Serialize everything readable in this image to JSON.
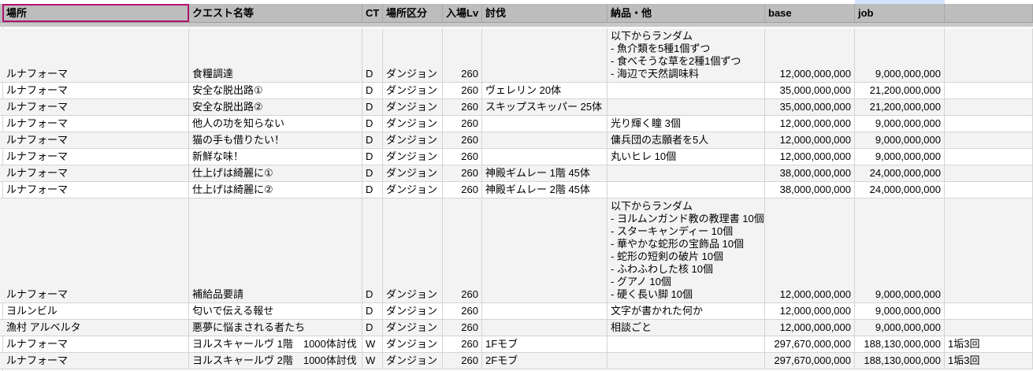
{
  "header": {
    "columns": [
      "場所",
      "クエスト名等",
      "CT",
      "場所区分",
      "入場Lv",
      "討伐",
      "納品・他",
      "base",
      "job",
      ""
    ]
  },
  "rows": [
    {
      "location": "ルナフォーマ",
      "quest": "食糧調達",
      "ct": "D",
      "area_type": "ダンジョン",
      "lv": "260",
      "hunt": "",
      "delivery": "以下からランダム\n- 魚介類を5種1個ずつ\n- 食べそうな草を2種1個ずつ\n- 海辺で天然調味料",
      "base": "12,000,000,000",
      "job": "9,000,000,000",
      "note": ""
    },
    {
      "location": "ルナフォーマ",
      "quest": "安全な脱出路①",
      "ct": "D",
      "area_type": "ダンジョン",
      "lv": "260",
      "hunt": "ヴェレリン 20体",
      "delivery": "",
      "base": "35,000,000,000",
      "job": "21,200,000,000",
      "note": ""
    },
    {
      "location": "ルナフォーマ",
      "quest": "安全な脱出路②",
      "ct": "D",
      "area_type": "ダンジョン",
      "lv": "260",
      "hunt": "スキップスキッパー 25体",
      "delivery": "",
      "base": "35,000,000,000",
      "job": "21,200,000,000",
      "note": ""
    },
    {
      "location": "ルナフォーマ",
      "quest": "他人の功を知らない",
      "ct": "D",
      "area_type": "ダンジョン",
      "lv": "260",
      "hunt": "",
      "delivery": "光り輝く瞳 3個",
      "base": "12,000,000,000",
      "job": "9,000,000,000",
      "note": ""
    },
    {
      "location": "ルナフォーマ",
      "quest": "猫の手も借りたい！",
      "ct": "D",
      "area_type": "ダンジョン",
      "lv": "260",
      "hunt": "",
      "delivery": "傭兵団の志願者を5人",
      "base": "12,000,000,000",
      "job": "9,000,000,000",
      "note": ""
    },
    {
      "location": "ルナフォーマ",
      "quest": "新鮮な味！",
      "ct": "D",
      "area_type": "ダンジョン",
      "lv": "260",
      "hunt": "",
      "delivery": "丸いヒレ 10個",
      "base": "12,000,000,000",
      "job": "9,000,000,000",
      "note": ""
    },
    {
      "location": "ルナフォーマ",
      "quest": "仕上げは綺麗に①",
      "ct": "D",
      "area_type": "ダンジョン",
      "lv": "260",
      "hunt": "神殿ギムレー 1階 45体",
      "delivery": "",
      "base": "38,000,000,000",
      "job": "24,000,000,000",
      "note": ""
    },
    {
      "location": "ルナフォーマ",
      "quest": "仕上げは綺麗に②",
      "ct": "D",
      "area_type": "ダンジョン",
      "lv": "260",
      "hunt": "神殿ギムレー 2階 45体",
      "delivery": "",
      "base": "38,000,000,000",
      "job": "24,000,000,000",
      "note": ""
    },
    {
      "location": "ルナフォーマ",
      "quest": "補給品要請",
      "ct": "D",
      "area_type": "ダンジョン",
      "lv": "260",
      "hunt": "",
      "delivery": "以下からランダム\n- ヨルムンガンド教の教理書 10個\n- スターキャンディー 10個\n- 華やかな蛇形の宝飾品 10個\n- 蛇形の短剣の破片 10個\n- ふわふわした核 10個\n- グアノ 10個\n- 硬く長い脚 10個",
      "base": "12,000,000,000",
      "job": "9,000,000,000",
      "note": ""
    },
    {
      "location": "ヨルンビル",
      "quest": "匂いで伝える報せ",
      "ct": "D",
      "area_type": "ダンジョン",
      "lv": "260",
      "hunt": "",
      "delivery": "文字が書かれた何か",
      "base": "12,000,000,000",
      "job": "9,000,000,000",
      "note": ""
    },
    {
      "location": "漁村 アルベルタ",
      "quest": "悪夢に悩まされる者たち",
      "ct": "D",
      "area_type": "ダンジョン",
      "lv": "260",
      "hunt": "",
      "delivery": "相談ごと",
      "base": "12,000,000,000",
      "job": "9,000,000,000",
      "note": ""
    },
    {
      "location": "ルナフォーマ",
      "quest": "ヨルスキャールヴ 1階　1000体討伐",
      "ct": "W",
      "area_type": "ダンジョン",
      "lv": "260",
      "hunt": "1Fモブ",
      "delivery": "",
      "base": "297,670,000,000",
      "job": "188,130,000,000",
      "note": "1垢3回"
    },
    {
      "location": "ルナフォーマ",
      "quest": "ヨルスキャールヴ 2階　1000体討伐",
      "ct": "W",
      "area_type": "ダンジョン",
      "lv": "260",
      "hunt": "2Fモブ",
      "delivery": "",
      "base": "297,670,000,000",
      "job": "188,130,000,000",
      "note": "1垢3回"
    }
  ],
  "colors": {
    "header_bg": "#bdbdbd",
    "alt_row": "#f3f3f3",
    "selection": "#b0136e",
    "column_highlight": "#d3e3fd"
  }
}
